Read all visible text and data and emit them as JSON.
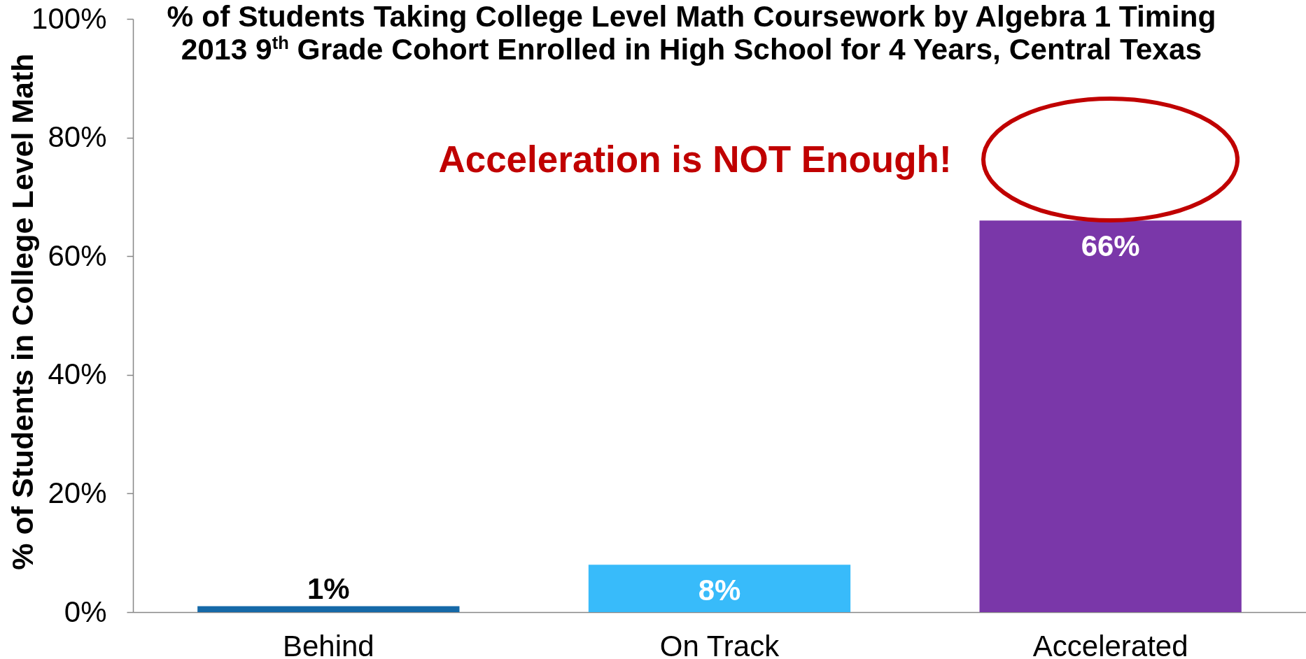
{
  "chart_data": {
    "type": "bar",
    "title": "% of Students Taking College Level Math Coursework by Algebra 1 Timing",
    "subtitle": "2013 9$^{th}$ Grade Cohort Enrolled in High School for 4 Years, Central Texas",
    "ylabel": "% of Students in College Level Math",
    "categories": [
      "Behind",
      "On Track",
      "Accelerated"
    ],
    "values": [
      1,
      8,
      66
    ],
    "value_labels": [
      "1%",
      "8%",
      "66%"
    ],
    "colors": [
      "#1569a8",
      "#38bbfa",
      "#7a37a9"
    ],
    "ylim": [
      0,
      100
    ],
    "yticks": [
      {
        "value": 0,
        "label": "0%"
      },
      {
        "value": 20,
        "label": "20%"
      },
      {
        "value": 40,
        "label": "40%"
      },
      {
        "value": 60,
        "label": "60%"
      },
      {
        "value": 80,
        "label": "80%"
      },
      {
        "value": 100,
        "label": "100%"
      }
    ],
    "annotations": [
      "Acceleration is NOT Enough!"
    ]
  }
}
